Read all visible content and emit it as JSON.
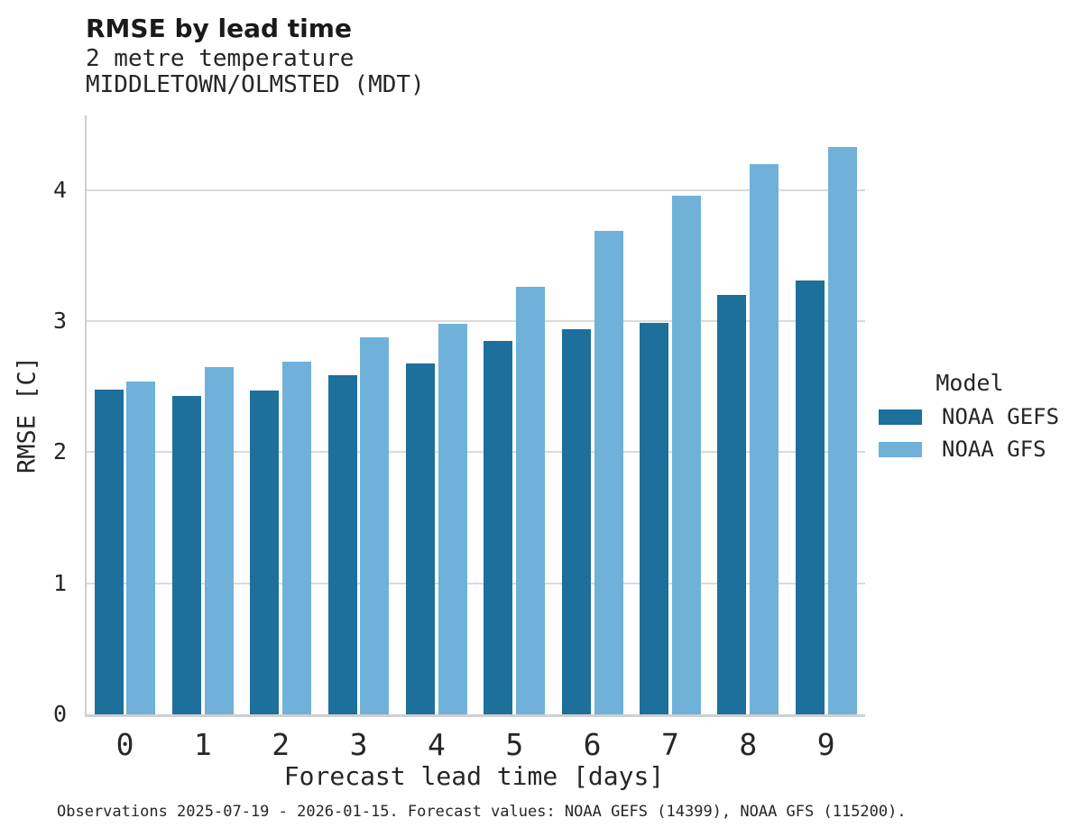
{
  "chart_data": {
    "type": "bar",
    "title": "RMSE by lead time",
    "subtitle": [
      "2 metre temperature",
      "MIDDLETOWN/OLMSTED (MDT)"
    ],
    "categories": [
      "0",
      "1",
      "2",
      "3",
      "4",
      "5",
      "6",
      "7",
      "8",
      "9"
    ],
    "series": [
      {
        "name": "NOAA GEFS",
        "color": "#1d6f9c",
        "values": [
          2.48,
          2.43,
          2.47,
          2.59,
          2.68,
          2.85,
          2.94,
          2.99,
          3.2,
          3.31
        ]
      },
      {
        "name": "NOAA GFS",
        "color": "#6fb1d8",
        "values": [
          2.54,
          2.65,
          2.69,
          2.88,
          2.98,
          3.26,
          3.69,
          3.96,
          4.2,
          4.33
        ]
      }
    ],
    "xlabel": "Forecast lead time [days]",
    "ylabel": "RMSE [C]",
    "ylim": [
      0,
      4.57
    ],
    "yticks": [
      0,
      1,
      2,
      3,
      4
    ],
    "grid": "horizontal",
    "legend": {
      "title": "Model",
      "position": "right-center"
    },
    "footnote": "Observations 2025-07-19 - 2026-01-15. Forecast values: NOAA GEFS (14399), NOAA GFS (115200)."
  },
  "colors": {
    "gefs_bar": "#1d6f9c",
    "gfs_bar": "#6fb1d8",
    "gridline": "#dadada",
    "spine": "#cfcfcf",
    "text": "#262626"
  }
}
